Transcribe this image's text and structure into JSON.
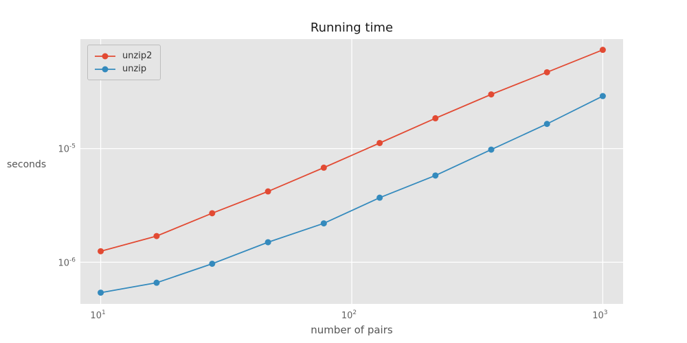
{
  "chart": {
    "title": "Running time",
    "xlabel": "number of pairs",
    "ylabel": "seconds"
  },
  "chart_data": {
    "type": "line",
    "title": "Running time",
    "xlabel": "number of pairs",
    "ylabel": "seconds",
    "xscale": "log",
    "yscale": "log",
    "grid": true,
    "legend_position": "upper left",
    "background_color": "#e5e5e5",
    "grid_color": "#ffffff",
    "tick_color": "#616161",
    "x": [
      10,
      16.7,
      27.8,
      46.4,
      77.4,
      129.2,
      215.4,
      359.4,
      599.5,
      1000
    ],
    "series": [
      {
        "name": "unzip2",
        "color": "#e24a33",
        "values": [
          1.25e-06,
          1.7e-06,
          2.7e-06,
          4.2e-06,
          6.8e-06,
          1.12e-05,
          1.85e-05,
          3e-05,
          4.7e-05,
          7.4e-05
        ]
      },
      {
        "name": "unzip",
        "color": "#348abd",
        "values": [
          5.4e-07,
          6.6e-07,
          9.7e-07,
          1.5e-06,
          2.2e-06,
          3.7e-06,
          5.8e-06,
          9.8e-06,
          1.65e-05,
          2.9e-05
        ]
      }
    ],
    "xlim": [
      8.3,
      1205
    ],
    "ylim": [
      4.3e-07,
      9.2e-05
    ],
    "xticks": [
      {
        "value": 10,
        "base": "10",
        "exp": "1"
      },
      {
        "value": 100,
        "base": "10",
        "exp": "2"
      },
      {
        "value": 1000,
        "base": "10",
        "exp": "3"
      }
    ],
    "yticks": [
      {
        "value": 1e-05,
        "base": "10",
        "exp": "-5"
      },
      {
        "value": 1e-06,
        "base": "10",
        "exp": "-6"
      }
    ]
  }
}
